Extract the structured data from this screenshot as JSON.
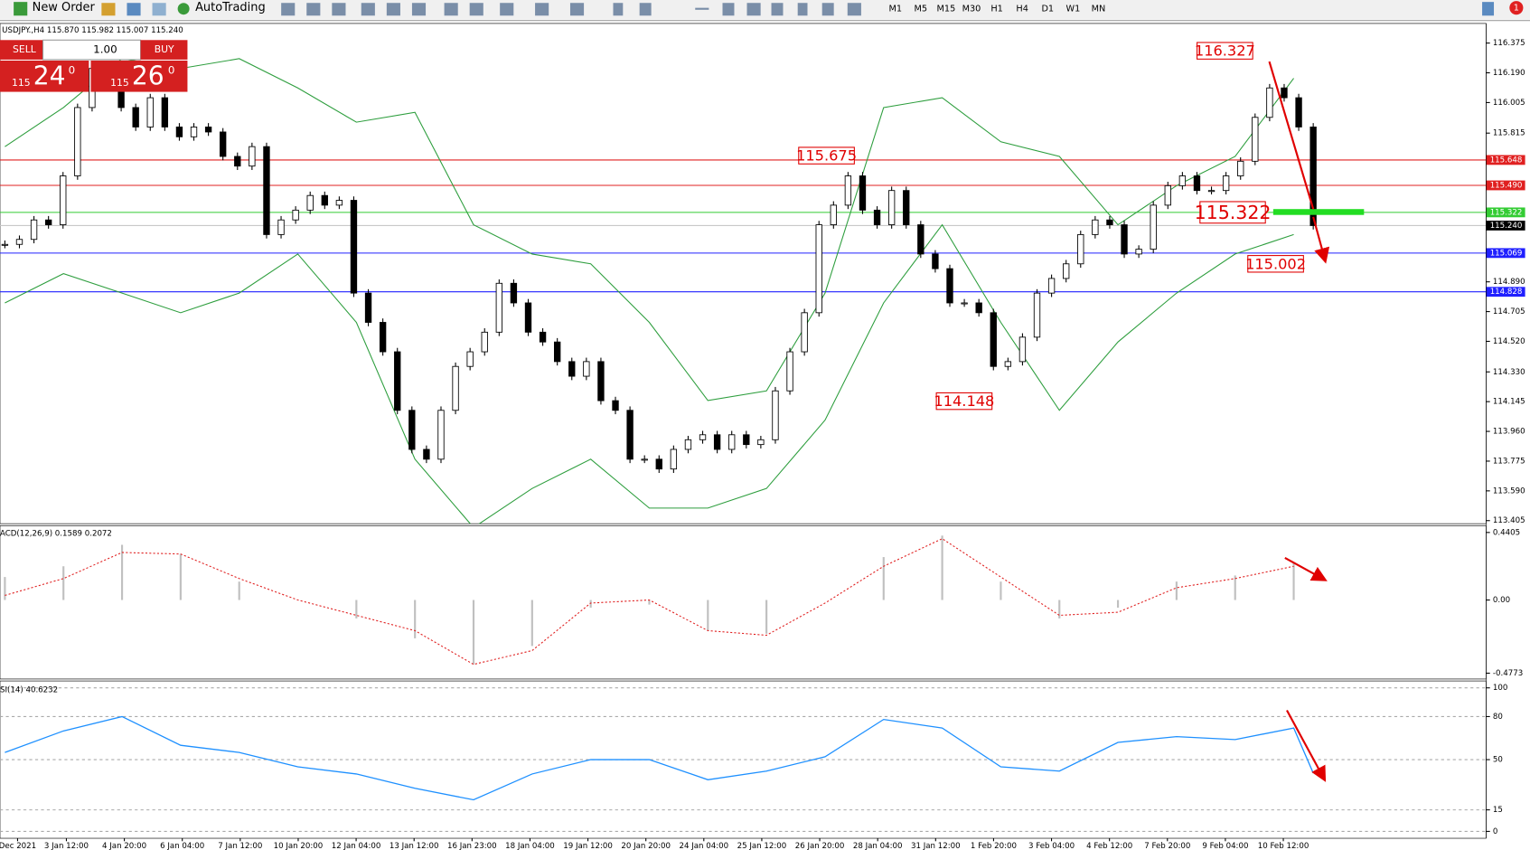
{
  "toolbar": {
    "new_order": "New Order",
    "auto_trading": "AutoTrading",
    "timeframes": [
      "M1",
      "M5",
      "M15",
      "M30",
      "H1",
      "H4",
      "D1",
      "W1",
      "MN"
    ],
    "alert_badge": "1"
  },
  "trade_panel": {
    "sell": "SELL",
    "buy": "BUY",
    "lots": "1.00",
    "sell_price": {
      "big": "115",
      "figure": "24",
      "sup": "0"
    },
    "buy_price": {
      "big": "115",
      "figure": "26",
      "sup": "0"
    }
  },
  "chart_data": [
    {
      "type": "candlestick",
      "title": "USDJPY.,H4 115.870 115.982 115.007 115.240",
      "ylim": [
        113.386,
        116.497
      ],
      "yticks": [
        116.375,
        {
          "value": 116.19,
          "label": "116.190"
        },
        116.005,
        115.815,
        {
          "value": 114.89,
          "label": "114.890"
        },
        114.705,
        {
          "value": 114.52,
          "label": "114.520"
        },
        {
          "value": 114.33,
          "label": "114.330"
        },
        114.145,
        {
          "value": 113.96,
          "label": "113.960"
        },
        113.775,
        {
          "value": 113.59,
          "label": "113.590"
        },
        113.405
      ],
      "closes": [
        115.123,
        115.154,
        115.275,
        115.245,
        115.549,
        115.974,
        116.217,
        116.096,
        115.974,
        115.853,
        116.035,
        115.853,
        115.792,
        115.853,
        115.822,
        115.67,
        115.61,
        115.731,
        115.184,
        115.275,
        115.336,
        115.427,
        115.367,
        115.397,
        114.82,
        114.638,
        114.455,
        114.091,
        113.848,
        113.787,
        114.091,
        114.364,
        114.455,
        114.577,
        114.881,
        114.759,
        114.577,
        114.516,
        114.394,
        114.303,
        114.394,
        114.151,
        114.091,
        113.787,
        113.787,
        113.726,
        113.848,
        113.908,
        113.939,
        113.848,
        113.939,
        113.878,
        113.908,
        114.212,
        114.455,
        114.698,
        115.245,
        115.367,
        115.549,
        115.336,
        115.245,
        115.458,
        115.245,
        115.063,
        114.972,
        114.759,
        114.759,
        114.698,
        114.364,
        114.394,
        114.546,
        114.82,
        114.911,
        115.002,
        115.184,
        115.275,
        115.245,
        115.063,
        115.093,
        115.367,
        115.488,
        115.549,
        115.458,
        115.458,
        115.549,
        115.64,
        115.913,
        116.096,
        116.035,
        115.853,
        115.24
      ],
      "upper_band": {
        "color": "#2e9e3e",
        "values": [
          115.731,
          115.974,
          116.278,
          116.217,
          116.278,
          116.096,
          115.883,
          115.944,
          115.245,
          115.063,
          115.002,
          114.638,
          114.152,
          114.212,
          114.82,
          115.974,
          116.035,
          115.761,
          115.67,
          115.245,
          115.488,
          115.67,
          116.156
        ]
      },
      "lower_band": {
        "color": "#2e9e3e",
        "values": [
          114.759,
          114.941,
          114.82,
          114.698,
          114.82,
          115.063,
          114.638,
          113.787,
          113.362,
          113.605,
          113.787,
          113.483,
          113.483,
          113.605,
          114.03,
          114.759,
          115.245,
          114.638,
          114.091,
          114.516,
          114.82,
          115.063,
          115.184
        ]
      },
      "levels": [
        {
          "value": 115.648,
          "label": "115.648",
          "color": "#e02020",
          "tag_color": "#e02020"
        },
        {
          "value": 115.49,
          "label": "115.490",
          "color": "#e02020",
          "tag_color": "#e02020"
        },
        {
          "value": 115.322,
          "label": "115.322",
          "color": "#33cc33",
          "tag_color": "#33cc33"
        },
        {
          "value": 115.24,
          "label": "115.240",
          "color": "#c8c8c8",
          "tag_color": "#000000"
        },
        {
          "value": 115.069,
          "label": "115.069",
          "color": "#2020ff",
          "tag_color": "#2020ff"
        },
        {
          "value": 114.828,
          "label": "114.828",
          "color": "#2020ff",
          "tag_color": "#2020ff"
        }
      ],
      "annotations": [
        116.327,
        115.675,
        115.322,
        115.002,
        114.148
      ],
      "x_labels": [
        "Dec 2021",
        "3 Jan 12:00",
        "4 Jan 20:00",
        "6 Jan 04:00",
        "7 Jan 12:00",
        "10 Jan 20:00",
        "12 Jan 04:00",
        "13 Jan 12:00",
        "16 Jan 23:00",
        "18 Jan 04:00",
        "19 Jan 12:00",
        "20 Jan 20:00",
        "24 Jan 04:00",
        "25 Jan 12:00",
        "26 Jan 20:00",
        "28 Jan 04:00",
        "31 Jan 12:00",
        "1 Feb 20:00",
        "3 Feb 04:00",
        "4 Feb 12:00",
        "7 Feb 20:00",
        "9 Feb 04:00",
        "10 Feb 12:00"
      ]
    },
    {
      "type": "bar",
      "title": "ACD(12,26,9) 0.1589 0.2072",
      "ylim": [
        -0.5155,
        0.4851
      ],
      "yticks": [
        0.4405,
        {
          "value": 0,
          "label": "0.00"
        },
        -0.4773
      ],
      "color": "#c0c0c0",
      "values": [
        0.15,
        0.22,
        0.36,
        0.3,
        0.12,
        0.0,
        -0.12,
        -0.25,
        -0.42,
        -0.3,
        -0.05,
        -0.03,
        -0.2,
        -0.22,
        0.0,
        0.28,
        0.42,
        0.12,
        -0.12,
        -0.05,
        0.12,
        0.16,
        0.24
      ],
      "signal": {
        "color": "#e02020",
        "values": [
          0.03,
          0.14,
          0.31,
          0.3,
          0.14,
          0.0,
          -0.1,
          -0.2,
          -0.42,
          -0.33,
          -0.02,
          0.0,
          -0.2,
          -0.23,
          -0.02,
          0.22,
          0.4,
          0.15,
          -0.1,
          -0.08,
          0.08,
          0.14,
          0.22
        ]
      }
    },
    {
      "type": "line",
      "title": "SI(14) 40.6232",
      "ylim": [
        -4.8,
        104.8
      ],
      "yticks": [
        100,
        80,
        50,
        15,
        0
      ],
      "grid": true,
      "color": "#1e90ff",
      "values": [
        55,
        70,
        80,
        60,
        55,
        45,
        40,
        30,
        22,
        40,
        50,
        50,
        36,
        42,
        52,
        78,
        72,
        45,
        42,
        62,
        66,
        64,
        72,
        40.6232
      ]
    }
  ]
}
